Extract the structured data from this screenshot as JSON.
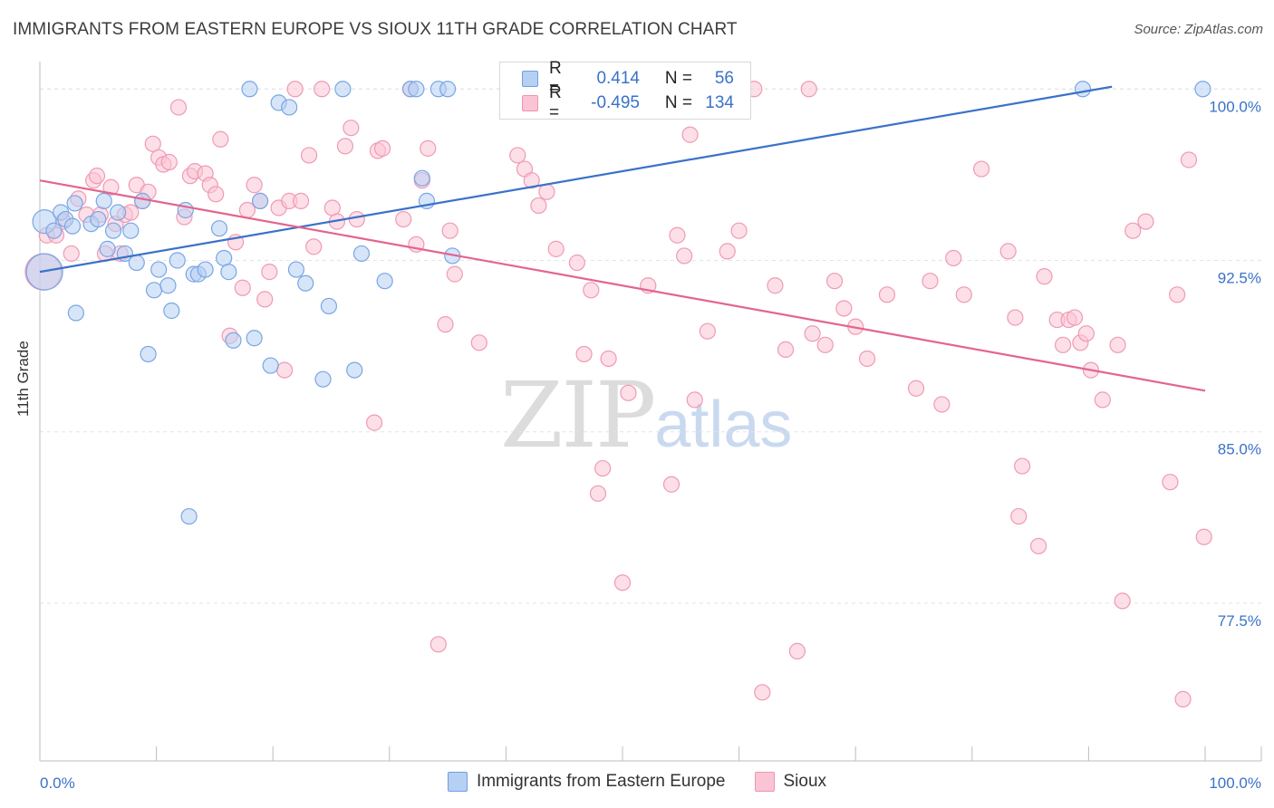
{
  "title": "IMMIGRANTS FROM EASTERN EUROPE VS SIOUX 11TH GRADE CORRELATION CHART",
  "source": "Source: ZipAtlas.com",
  "watermark": {
    "zip": "ZIP",
    "atlas": "atlas"
  },
  "colors": {
    "blue": "#3a72c8",
    "blue_fill": "#b6d0f4",
    "pink": "#e4648e",
    "pink_fill": "#fbc4d4",
    "grid": "#e4e4e4"
  },
  "legend": {
    "rows": [
      {
        "series": "blue",
        "r_label": "R =",
        "r_value": "0.414",
        "n_label": "N =",
        "n_value": "56"
      },
      {
        "series": "pink",
        "r_label": "R =",
        "r_value": "-0.495",
        "n_label": "N =",
        "n_value": "134"
      }
    ]
  },
  "bottom_legend": {
    "blue": "Immigrants from Eastern Europe",
    "pink": "Sioux"
  },
  "chart_data": {
    "type": "scatter",
    "title": "IMMIGRANTS FROM EASTERN EUROPE VS SIOUX 11TH GRADE CORRELATION CHART",
    "xlabel": "",
    "ylabel": "11th Grade",
    "xlim": [
      0,
      100
    ],
    "ylim": [
      70.6,
      101.2
    ],
    "x_tick_labels": [
      {
        "value": 0,
        "label": "0.0%"
      },
      {
        "value": 100,
        "label": "100.0%"
      }
    ],
    "y_tick_labels": [
      {
        "value": 100,
        "label": "100.0%"
      },
      {
        "value": 92.5,
        "label": "92.5%"
      },
      {
        "value": 85,
        "label": "85.0%"
      },
      {
        "value": 77.5,
        "label": "77.5%"
      }
    ],
    "series": [
      {
        "name": "Immigrants from Eastern Europe",
        "color": "blue",
        "r": 0.414,
        "n": 56,
        "trend": {
          "x0": 0,
          "y0": 92.0,
          "x1": 92,
          "y1": 100.1
        },
        "points": [
          [
            0.4,
            94.2,
            1
          ],
          [
            0.4,
            92.0,
            2
          ],
          [
            1.2,
            93.8,
            0
          ],
          [
            1.8,
            94.6,
            0
          ],
          [
            2.2,
            94.3,
            0
          ],
          [
            2.8,
            94.0,
            0
          ],
          [
            3.1,
            90.2,
            0
          ],
          [
            3.0,
            95.0,
            0
          ],
          [
            4.4,
            94.1,
            0
          ],
          [
            5.0,
            94.3,
            0
          ],
          [
            5.5,
            95.1,
            0
          ],
          [
            5.8,
            93.0,
            0
          ],
          [
            6.3,
            93.8,
            0
          ],
          [
            6.7,
            94.6,
            0
          ],
          [
            7.3,
            92.8,
            0
          ],
          [
            7.8,
            93.8,
            0
          ],
          [
            8.3,
            92.4,
            0
          ],
          [
            8.8,
            95.1,
            0
          ],
          [
            9.3,
            88.4,
            0
          ],
          [
            9.8,
            91.2,
            0
          ],
          [
            10.2,
            92.1,
            0
          ],
          [
            11.0,
            91.4,
            0
          ],
          [
            11.3,
            90.3,
            0
          ],
          [
            11.8,
            92.5,
            0
          ],
          [
            12.5,
            94.7,
            0
          ],
          [
            12.8,
            81.3,
            0
          ],
          [
            13.2,
            91.9,
            0
          ],
          [
            13.6,
            91.9,
            0
          ],
          [
            14.2,
            92.1,
            0
          ],
          [
            15.4,
            93.9,
            0
          ],
          [
            15.8,
            92.6,
            0
          ],
          [
            16.2,
            92.0,
            0
          ],
          [
            16.6,
            89.0,
            0
          ],
          [
            18.0,
            100.0,
            0
          ],
          [
            18.4,
            89.1,
            0
          ],
          [
            18.9,
            95.1,
            0
          ],
          [
            19.8,
            87.9,
            0
          ],
          [
            20.5,
            99.4,
            0
          ],
          [
            21.4,
            99.2,
            0
          ],
          [
            22.0,
            92.1,
            0
          ],
          [
            22.8,
            91.5,
            0
          ],
          [
            24.3,
            87.3,
            0
          ],
          [
            24.8,
            90.5,
            0
          ],
          [
            26.0,
            100.0,
            0
          ],
          [
            27.0,
            87.7,
            0
          ],
          [
            27.6,
            92.8,
            0
          ],
          [
            29.6,
            91.6,
            0
          ],
          [
            31.8,
            100.0,
            0
          ],
          [
            32.3,
            100.0,
            0
          ],
          [
            32.8,
            96.1,
            0
          ],
          [
            33.2,
            95.1,
            0
          ],
          [
            34.2,
            100.0,
            0
          ],
          [
            35.0,
            100.0,
            0
          ],
          [
            35.4,
            92.7,
            0
          ],
          [
            89.5,
            100.0,
            0
          ],
          [
            99.8,
            100.0,
            0
          ]
        ]
      },
      {
        "name": "Sioux",
        "color": "pink",
        "r": -0.495,
        "n": 134,
        "trend": {
          "x0": 0,
          "y0": 96.0,
          "x1": 100,
          "y1": 86.8
        },
        "points": [
          [
            0.3,
            92.0,
            2
          ],
          [
            0.6,
            93.6,
            0
          ],
          [
            1.4,
            93.6,
            0
          ],
          [
            2.0,
            94.2,
            0
          ],
          [
            2.7,
            92.8,
            0
          ],
          [
            3.3,
            95.2,
            0
          ],
          [
            4.0,
            94.5,
            0
          ],
          [
            4.6,
            96.0,
            0
          ],
          [
            4.9,
            96.2,
            0
          ],
          [
            5.2,
            94.5,
            0
          ],
          [
            5.6,
            92.8,
            0
          ],
          [
            6.1,
            95.7,
            0
          ],
          [
            6.5,
            94.1,
            0
          ],
          [
            6.9,
            92.8,
            0
          ],
          [
            7.3,
            94.5,
            0
          ],
          [
            7.8,
            94.6,
            0
          ],
          [
            8.3,
            95.8,
            0
          ],
          [
            8.8,
            95.1,
            0
          ],
          [
            9.3,
            95.5,
            0
          ],
          [
            9.7,
            97.6,
            0
          ],
          [
            10.2,
            97.0,
            0
          ],
          [
            10.6,
            96.7,
            0
          ],
          [
            11.1,
            96.8,
            0
          ],
          [
            11.9,
            99.2,
            0
          ],
          [
            12.4,
            94.4,
            0
          ],
          [
            12.9,
            96.2,
            0
          ],
          [
            13.3,
            96.4,
            0
          ],
          [
            14.2,
            96.3,
            0
          ],
          [
            14.6,
            95.8,
            0
          ],
          [
            15.1,
            95.4,
            0
          ],
          [
            15.5,
            97.8,
            0
          ],
          [
            16.3,
            89.2,
            0
          ],
          [
            16.8,
            93.3,
            0
          ],
          [
            17.4,
            91.3,
            0
          ],
          [
            17.8,
            94.7,
            0
          ],
          [
            18.4,
            95.8,
            0
          ],
          [
            18.9,
            95.1,
            0
          ],
          [
            19.3,
            90.8,
            0
          ],
          [
            19.7,
            92.0,
            0
          ],
          [
            20.5,
            94.8,
            0
          ],
          [
            21.0,
            87.7,
            0
          ],
          [
            21.4,
            95.1,
            0
          ],
          [
            21.9,
            100.0,
            0
          ],
          [
            22.4,
            95.1,
            0
          ],
          [
            23.1,
            97.1,
            0
          ],
          [
            23.5,
            93.1,
            0
          ],
          [
            24.2,
            100.0,
            0
          ],
          [
            25.1,
            94.8,
            0
          ],
          [
            25.5,
            94.2,
            0
          ],
          [
            26.2,
            97.5,
            0
          ],
          [
            26.7,
            98.3,
            0
          ],
          [
            27.2,
            94.3,
            0
          ],
          [
            28.7,
            85.4,
            0
          ],
          [
            29.0,
            97.3,
            0
          ],
          [
            29.4,
            97.4,
            0
          ],
          [
            31.2,
            94.3,
            0
          ],
          [
            31.8,
            100.0,
            0
          ],
          [
            32.3,
            93.2,
            0
          ],
          [
            32.8,
            96.0,
            0
          ],
          [
            33.3,
            97.4,
            0
          ],
          [
            34.2,
            75.7,
            0
          ],
          [
            34.8,
            89.7,
            0
          ],
          [
            35.2,
            93.8,
            0
          ],
          [
            35.6,
            91.9,
            0
          ],
          [
            37.7,
            88.9,
            0
          ],
          [
            41.0,
            97.1,
            0
          ],
          [
            41.6,
            96.5,
            0
          ],
          [
            42.2,
            96.0,
            0
          ],
          [
            42.8,
            94.9,
            0
          ],
          [
            43.5,
            95.5,
            0
          ],
          [
            44.3,
            93.0,
            0
          ],
          [
            44.9,
            100.0,
            0
          ],
          [
            45.4,
            100.0,
            0
          ],
          [
            46.1,
            92.4,
            0
          ],
          [
            46.7,
            88.4,
            0
          ],
          [
            47.3,
            91.2,
            0
          ],
          [
            47.9,
            82.3,
            0
          ],
          [
            48.3,
            83.4,
            0
          ],
          [
            48.8,
            88.2,
            0
          ],
          [
            50.0,
            78.4,
            0
          ],
          [
            50.5,
            86.7,
            0
          ],
          [
            52.2,
            91.4,
            0
          ],
          [
            54.2,
            82.7,
            0
          ],
          [
            54.7,
            93.6,
            0
          ],
          [
            55.3,
            92.7,
            0
          ],
          [
            55.8,
            98.0,
            0
          ],
          [
            56.2,
            86.4,
            0
          ],
          [
            57.3,
            89.4,
            0
          ],
          [
            59.0,
            92.9,
            0
          ],
          [
            60.0,
            93.8,
            0
          ],
          [
            61.3,
            100.0,
            0
          ],
          [
            62.0,
            73.6,
            0
          ],
          [
            63.1,
            91.4,
            0
          ],
          [
            64.0,
            88.6,
            0
          ],
          [
            65.0,
            75.4,
            0
          ],
          [
            66.0,
            100.0,
            0
          ],
          [
            66.3,
            89.3,
            0
          ],
          [
            67.4,
            88.8,
            0
          ],
          [
            68.2,
            91.6,
            0
          ],
          [
            69.0,
            90.4,
            0
          ],
          [
            70.0,
            89.6,
            0
          ],
          [
            71.0,
            88.2,
            0
          ],
          [
            72.7,
            91.0,
            0
          ],
          [
            75.2,
            86.9,
            0
          ],
          [
            76.4,
            91.6,
            0
          ],
          [
            77.4,
            86.2,
            0
          ],
          [
            78.4,
            92.6,
            0
          ],
          [
            79.3,
            91.0,
            0
          ],
          [
            80.8,
            96.5,
            0
          ],
          [
            83.1,
            92.9,
            0
          ],
          [
            83.7,
            90.0,
            0
          ],
          [
            84.3,
            83.5,
            0
          ],
          [
            84.0,
            81.3,
            0
          ],
          [
            85.7,
            80.0,
            0
          ],
          [
            86.2,
            91.8,
            0
          ],
          [
            87.3,
            89.9,
            0
          ],
          [
            87.8,
            88.8,
            0
          ],
          [
            88.3,
            89.9,
            0
          ],
          [
            88.8,
            90.0,
            0
          ],
          [
            89.3,
            88.9,
            0
          ],
          [
            89.8,
            89.3,
            0
          ],
          [
            90.2,
            87.7,
            0
          ],
          [
            91.2,
            86.4,
            0
          ],
          [
            92.5,
            88.8,
            0
          ],
          [
            92.9,
            77.6,
            0
          ],
          [
            93.8,
            93.8,
            0
          ],
          [
            94.9,
            94.2,
            0
          ],
          [
            97.0,
            82.8,
            0
          ],
          [
            97.6,
            91.0,
            0
          ],
          [
            98.1,
            73.3,
            0
          ],
          [
            98.6,
            96.9,
            0
          ],
          [
            99.9,
            80.4,
            0
          ]
        ]
      }
    ]
  }
}
